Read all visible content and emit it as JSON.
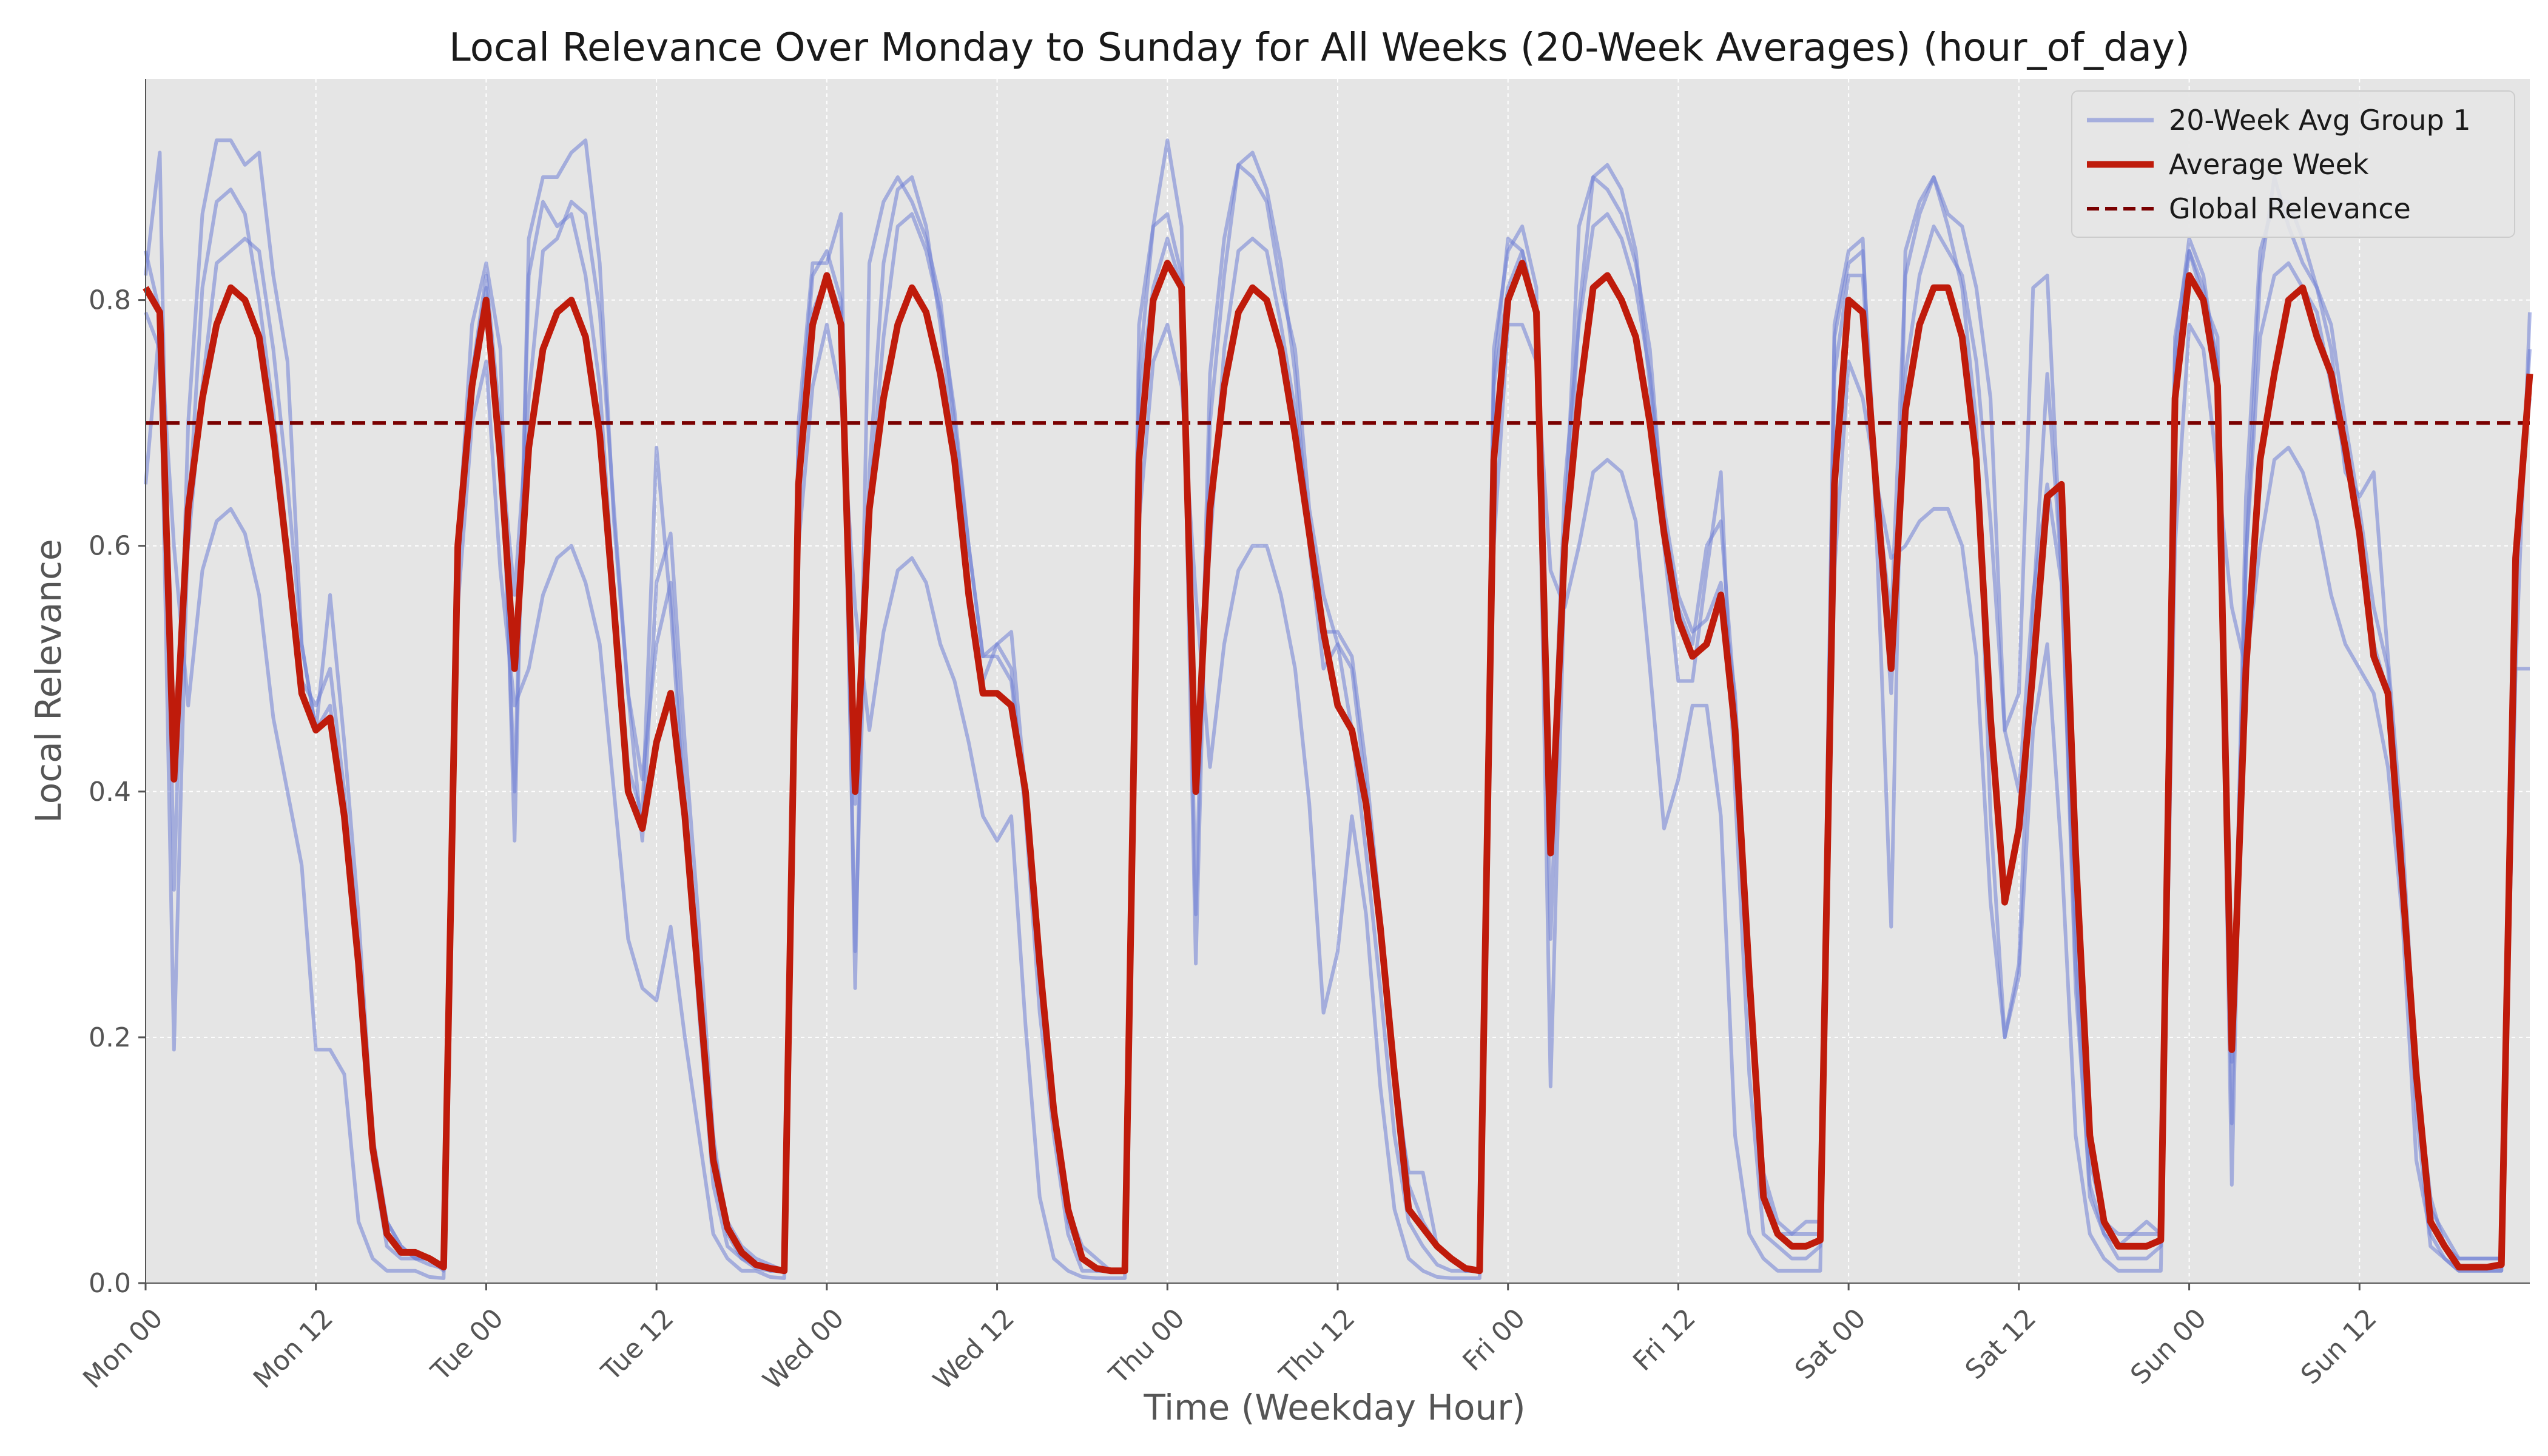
{
  "chart_data": {
    "type": "line",
    "title": "Local Relevance Over Monday to Sunday for All Weeks (20-Week Averages) (hour_of_day)",
    "xlabel": "Time (Weekday Hour)",
    "ylabel": "Local Relevance",
    "xlim": [
      0,
      168
    ],
    "ylim": [
      0.0,
      0.98
    ],
    "grid": true,
    "legend_position": "top-right",
    "x_ticks": [
      {
        "x": 0,
        "label": "Mon 00"
      },
      {
        "x": 12,
        "label": "Mon 12"
      },
      {
        "x": 24,
        "label": "Tue 00"
      },
      {
        "x": 36,
        "label": "Tue 12"
      },
      {
        "x": 48,
        "label": "Wed 00"
      },
      {
        "x": 60,
        "label": "Wed 12"
      },
      {
        "x": 72,
        "label": "Thu 00"
      },
      {
        "x": 84,
        "label": "Thu 12"
      },
      {
        "x": 96,
        "label": "Fri 00"
      },
      {
        "x": 108,
        "label": "Fri 12"
      },
      {
        "x": 120,
        "label": "Sat 00"
      },
      {
        "x": 132,
        "label": "Sat 12"
      },
      {
        "x": 144,
        "label": "Sun 00"
      },
      {
        "x": 156,
        "label": "Sun 12"
      }
    ],
    "y_ticks": [
      {
        "y": 0.0,
        "label": "0.0"
      },
      {
        "y": 0.2,
        "label": "0.2"
      },
      {
        "y": 0.4,
        "label": "0.4"
      },
      {
        "y": 0.6,
        "label": "0.6"
      },
      {
        "y": 0.8,
        "label": "0.8"
      }
    ],
    "legend": [
      {
        "label": "20-Week Avg Group 1",
        "style": "line",
        "color": "#6f7fd6"
      },
      {
        "label": "Average Week",
        "style": "thick-line",
        "color": "#bf1b0b"
      },
      {
        "label": "Global Relevance",
        "style": "dashed",
        "color": "#7a0000"
      }
    ],
    "colors": {
      "background": "#e5e5e5",
      "grid": "#ffffff",
      "group_line": "#6f7fd6",
      "average_line": "#bf1b0b",
      "global_line": "#7a0000"
    },
    "global_relevance": 0.7,
    "series": [
      {
        "name": "Average Week",
        "values": [
          0.81,
          0.79,
          0.41,
          0.63,
          0.72,
          0.78,
          0.81,
          0.8,
          0.77,
          0.69,
          0.59,
          0.48,
          0.45,
          0.46,
          0.38,
          0.26,
          0.11,
          0.04,
          0.025,
          0.025,
          0.02,
          0.013,
          0.6,
          0.73,
          0.8,
          0.67,
          0.5,
          0.68,
          0.76,
          0.79,
          0.8,
          0.77,
          0.69,
          0.55,
          0.4,
          0.37,
          0.44,
          0.48,
          0.38,
          0.24,
          0.1,
          0.045,
          0.025,
          0.015,
          0.012,
          0.01,
          0.65,
          0.78,
          0.82,
          0.78,
          0.4,
          0.63,
          0.72,
          0.78,
          0.81,
          0.79,
          0.74,
          0.67,
          0.56,
          0.48,
          0.48,
          0.47,
          0.4,
          0.26,
          0.14,
          0.06,
          0.02,
          0.012,
          0.01,
          0.01,
          0.67,
          0.8,
          0.83,
          0.81,
          0.4,
          0.63,
          0.73,
          0.79,
          0.81,
          0.8,
          0.76,
          0.69,
          0.61,
          0.53,
          0.47,
          0.45,
          0.39,
          0.29,
          0.17,
          0.06,
          0.045,
          0.03,
          0.02,
          0.012,
          0.01,
          0.67,
          0.8,
          0.83,
          0.79,
          0.35,
          0.6,
          0.72,
          0.81,
          0.82,
          0.8,
          0.77,
          0.7,
          0.61,
          0.54,
          0.51,
          0.52,
          0.56,
          0.45,
          0.25,
          0.07,
          0.04,
          0.03,
          0.03,
          0.035,
          0.65,
          0.8,
          0.79,
          0.64,
          0.5,
          0.71,
          0.78,
          0.81,
          0.81,
          0.77,
          0.67,
          0.46,
          0.31,
          0.37,
          0.5,
          0.64,
          0.65,
          0.35,
          0.12,
          0.05,
          0.03,
          0.03,
          0.03,
          0.035,
          0.72,
          0.82,
          0.8,
          0.73,
          0.19,
          0.5,
          0.67,
          0.74,
          0.8,
          0.81,
          0.77,
          0.74,
          0.68,
          0.61,
          0.51,
          0.48,
          0.33,
          0.17,
          0.05,
          0.03,
          0.013,
          0.013,
          0.013,
          0.015,
          0.59,
          0.74
        ]
      },
      {
        "name": "",
        "values": [
          0.84,
          0.79,
          0.19,
          0.62,
          0.81,
          0.88,
          0.89,
          0.87,
          0.8,
          0.71,
          0.6,
          0.49,
          0.47,
          0.5,
          0.4,
          0.27,
          0.1,
          0.03,
          0.02,
          0.02,
          0.015,
          0.012,
          0.61,
          0.74,
          0.82,
          0.7,
          0.4,
          0.82,
          0.88,
          0.86,
          0.87,
          0.82,
          0.73,
          0.56,
          0.42,
          0.38,
          0.68,
          0.55,
          0.38,
          0.22,
          0.08,
          0.03,
          0.02,
          0.012,
          0.01,
          0.01,
          0.68,
          0.82,
          0.84,
          0.8,
          0.27,
          0.66,
          0.83,
          0.89,
          0.9,
          0.86,
          0.78,
          0.68,
          0.55,
          0.49,
          0.52,
          0.5,
          0.38,
          0.22,
          0.12,
          0.04,
          0.01,
          0.01,
          0.01,
          0.01,
          0.78,
          0.86,
          0.87,
          0.82,
          0.26,
          0.7,
          0.82,
          0.91,
          0.92,
          0.89,
          0.83,
          0.74,
          0.6,
          0.5,
          0.52,
          0.45,
          0.35,
          0.24,
          0.12,
          0.05,
          0.03,
          0.015,
          0.01,
          0.01,
          0.01,
          0.76,
          0.84,
          0.86,
          0.81,
          0.16,
          0.58,
          0.79,
          0.9,
          0.91,
          0.89,
          0.84,
          0.73,
          0.6,
          0.49,
          0.49,
          0.58,
          0.66,
          0.4,
          0.17,
          0.04,
          0.03,
          0.02,
          0.02,
          0.03,
          0.78,
          0.84,
          0.85,
          0.6,
          0.29,
          0.84,
          0.88,
          0.9,
          0.86,
          0.81,
          0.7,
          0.38,
          0.2,
          0.26,
          0.55,
          0.74,
          0.58,
          0.24,
          0.08,
          0.04,
          0.02,
          0.02,
          0.02,
          0.03,
          0.76,
          0.85,
          0.82,
          0.74,
          0.08,
          0.59,
          0.82,
          0.9,
          0.86,
          0.83,
          0.81,
          0.78,
          0.7,
          0.63,
          0.55,
          0.5,
          0.35,
          0.14,
          0.03,
          0.02,
          0.01,
          0.01,
          0.01,
          0.01,
          0.5,
          0.79
        ]
      },
      {
        "name": "",
        "values": [
          0.82,
          0.92,
          0.32,
          0.7,
          0.87,
          0.93,
          0.93,
          0.91,
          0.92,
          0.82,
          0.75,
          0.52,
          0.45,
          0.56,
          0.44,
          0.3,
          0.12,
          0.05,
          0.03,
          0.02,
          0.02,
          0.01,
          0.6,
          0.78,
          0.83,
          0.76,
          0.36,
          0.85,
          0.9,
          0.9,
          0.92,
          0.93,
          0.83,
          0.62,
          0.48,
          0.36,
          0.57,
          0.61,
          0.44,
          0.29,
          0.12,
          0.04,
          0.02,
          0.015,
          0.01,
          0.01,
          0.7,
          0.83,
          0.83,
          0.87,
          0.24,
          0.83,
          0.88,
          0.9,
          0.88,
          0.85,
          0.8,
          0.7,
          0.6,
          0.51,
          0.52,
          0.53,
          0.4,
          0.27,
          0.15,
          0.05,
          0.02,
          0.01,
          0.01,
          0.01,
          0.74,
          0.86,
          0.93,
          0.86,
          0.3,
          0.74,
          0.85,
          0.91,
          0.9,
          0.88,
          0.81,
          0.76,
          0.63,
          0.56,
          0.52,
          0.5,
          0.4,
          0.3,
          0.16,
          0.09,
          0.09,
          0.03,
          0.02,
          0.01,
          0.01,
          0.74,
          0.85,
          0.84,
          0.79,
          0.28,
          0.61,
          0.86,
          0.9,
          0.89,
          0.87,
          0.83,
          0.76,
          0.62,
          0.55,
          0.52,
          0.6,
          0.62,
          0.47,
          0.24,
          0.08,
          0.04,
          0.04,
          0.05,
          0.05,
          0.77,
          0.83,
          0.84,
          0.64,
          0.54,
          0.82,
          0.87,
          0.9,
          0.87,
          0.86,
          0.81,
          0.72,
          0.45,
          0.48,
          0.81,
          0.82,
          0.58,
          0.26,
          0.07,
          0.04,
          0.03,
          0.04,
          0.05,
          0.04,
          0.77,
          0.84,
          0.8,
          0.77,
          0.13,
          0.64,
          0.84,
          0.88,
          0.88,
          0.85,
          0.81,
          0.76,
          0.66,
          0.64,
          0.66,
          0.51,
          0.37,
          0.17,
          0.07,
          0.03,
          0.02,
          0.02,
          0.02,
          0.02,
          0.58,
          0.76
        ]
      },
      {
        "name": "",
        "values": [
          0.79,
          0.76,
          0.45,
          0.6,
          0.73,
          0.83,
          0.84,
          0.85,
          0.84,
          0.76,
          0.65,
          0.52,
          0.45,
          0.47,
          0.38,
          0.25,
          0.11,
          0.05,
          0.03,
          0.02,
          0.02,
          0.015,
          0.58,
          0.74,
          0.81,
          0.68,
          0.56,
          0.72,
          0.84,
          0.85,
          0.88,
          0.87,
          0.79,
          0.63,
          0.48,
          0.41,
          0.52,
          0.57,
          0.4,
          0.25,
          0.11,
          0.05,
          0.03,
          0.02,
          0.015,
          0.01,
          0.63,
          0.79,
          0.82,
          0.79,
          0.39,
          0.63,
          0.77,
          0.86,
          0.87,
          0.84,
          0.79,
          0.71,
          0.6,
          0.51,
          0.51,
          0.49,
          0.39,
          0.27,
          0.14,
          0.06,
          0.03,
          0.02,
          0.01,
          0.01,
          0.72,
          0.81,
          0.85,
          0.81,
          0.43,
          0.6,
          0.76,
          0.84,
          0.85,
          0.84,
          0.78,
          0.71,
          0.62,
          0.53,
          0.53,
          0.51,
          0.42,
          0.3,
          0.18,
          0.08,
          0.05,
          0.03,
          0.02,
          0.01,
          0.01,
          0.73,
          0.81,
          0.84,
          0.79,
          0.36,
          0.65,
          0.78,
          0.86,
          0.87,
          0.85,
          0.81,
          0.74,
          0.63,
          0.56,
          0.53,
          0.54,
          0.57,
          0.48,
          0.26,
          0.09,
          0.05,
          0.04,
          0.04,
          0.04,
          0.74,
          0.82,
          0.82,
          0.64,
          0.48,
          0.74,
          0.82,
          0.86,
          0.84,
          0.82,
          0.75,
          0.62,
          0.45,
          0.4,
          0.56,
          0.65,
          0.57,
          0.29,
          0.1,
          0.05,
          0.04,
          0.04,
          0.04,
          0.04,
          0.74,
          0.84,
          0.81,
          0.75,
          0.18,
          0.59,
          0.77,
          0.82,
          0.83,
          0.81,
          0.79,
          0.73,
          0.67,
          0.61,
          0.52,
          0.48,
          0.33,
          0.16,
          0.06,
          0.04,
          0.02,
          0.02,
          0.02,
          0.02,
          0.6,
          0.72
        ]
      },
      {
        "name": "",
        "values": [
          0.65,
          0.78,
          0.6,
          0.47,
          0.58,
          0.62,
          0.63,
          0.61,
          0.56,
          0.46,
          0.4,
          0.34,
          0.19,
          0.19,
          0.17,
          0.05,
          0.02,
          0.01,
          0.01,
          0.01,
          0.005,
          0.004,
          0.55,
          0.7,
          0.75,
          0.58,
          0.47,
          0.5,
          0.56,
          0.59,
          0.6,
          0.57,
          0.52,
          0.4,
          0.28,
          0.24,
          0.23,
          0.29,
          0.2,
          0.12,
          0.04,
          0.02,
          0.01,
          0.01,
          0.005,
          0.004,
          0.6,
          0.73,
          0.78,
          0.72,
          0.55,
          0.45,
          0.53,
          0.58,
          0.59,
          0.57,
          0.52,
          0.49,
          0.44,
          0.38,
          0.36,
          0.38,
          0.21,
          0.07,
          0.02,
          0.01,
          0.005,
          0.004,
          0.004,
          0.004,
          0.62,
          0.75,
          0.78,
          0.73,
          0.56,
          0.42,
          0.52,
          0.58,
          0.6,
          0.6,
          0.56,
          0.5,
          0.39,
          0.22,
          0.27,
          0.38,
          0.3,
          0.16,
          0.06,
          0.02,
          0.01,
          0.005,
          0.004,
          0.004,
          0.004,
          0.6,
          0.78,
          0.78,
          0.75,
          0.58,
          0.55,
          0.6,
          0.66,
          0.67,
          0.66,
          0.62,
          0.5,
          0.37,
          0.41,
          0.47,
          0.47,
          0.38,
          0.12,
          0.04,
          0.02,
          0.01,
          0.01,
          0.01,
          0.01,
          0.58,
          0.75,
          0.72,
          0.65,
          0.59,
          0.6,
          0.62,
          0.63,
          0.63,
          0.6,
          0.51,
          0.31,
          0.2,
          0.25,
          0.45,
          0.52,
          0.35,
          0.12,
          0.04,
          0.02,
          0.01,
          0.01,
          0.01,
          0.01,
          0.6,
          0.78,
          0.76,
          0.66,
          0.55,
          0.5,
          0.6,
          0.67,
          0.68,
          0.66,
          0.62,
          0.56,
          0.52,
          0.5,
          0.48,
          0.42,
          0.3,
          0.1,
          0.04,
          0.02,
          0.01,
          0.01,
          0.01,
          0.01,
          0.5,
          0.5
        ]
      }
    ]
  }
}
